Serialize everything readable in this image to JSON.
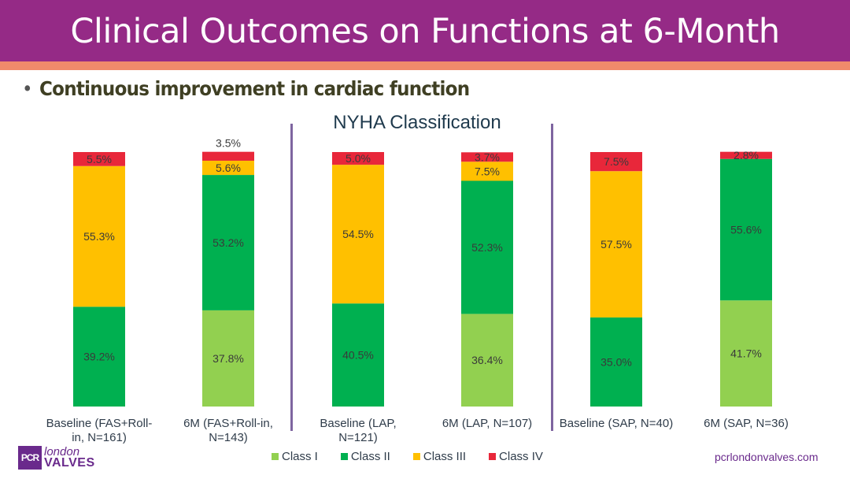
{
  "header": {
    "title": "Clinical Outcomes on Functions at 6-Month",
    "bullet": "Continuous improvement in cardiac function"
  },
  "colors": {
    "header_bg": "#952a86",
    "header_stripe": "#f08a6b",
    "class_i": "#92d050",
    "class_ii": "#00b050",
    "class_iii": "#ffc000",
    "class_iv": "#e8273a",
    "divider": "#7e65a0"
  },
  "chart_data": {
    "type": "bar",
    "stacked": true,
    "title": "NYHA Classification",
    "xlabel": "",
    "ylabel": "",
    "ylim": [
      0,
      100
    ],
    "categories": [
      "Baseline (FAS+Roll-in, N=161)",
      "6M (FAS+Roll-in, N=143)",
      "Baseline (LAP, N=121)",
      "6M (LAP, N=107)",
      "Baseline (SAP, N=40)",
      "6M (SAP, N=36)"
    ],
    "category_lines": [
      [
        "Baseline (FAS+Roll-",
        "in, N=161)"
      ],
      [
        "6M (FAS+Roll-in,",
        "N=143)"
      ],
      [
        "Baseline (LAP,",
        "N=121)"
      ],
      [
        "6M (LAP, N=107)"
      ],
      [
        "Baseline (SAP, N=40)"
      ],
      [
        "6M (SAP, N=36)"
      ]
    ],
    "series": [
      {
        "name": "Class I",
        "color": "#92d050",
        "values": [
          0,
          37.8,
          0,
          36.4,
          0,
          41.7
        ]
      },
      {
        "name": "Class II",
        "color": "#00b050",
        "values": [
          39.2,
          53.2,
          40.5,
          52.3,
          35.0,
          55.6
        ]
      },
      {
        "name": "Class III",
        "color": "#ffc000",
        "values": [
          55.3,
          5.6,
          54.5,
          7.5,
          57.5,
          0
        ]
      },
      {
        "name": "Class IV",
        "color": "#e8273a",
        "values": [
          5.5,
          3.5,
          5.0,
          3.7,
          7.5,
          2.8
        ]
      }
    ],
    "data_labels": [
      [
        "",
        "37.8%",
        "",
        "36.4%",
        "",
        "41.7%"
      ],
      [
        "39.2%",
        "53.2%",
        "40.5%",
        "52.3%",
        "35.0%",
        "55.6%"
      ],
      [
        "55.3%",
        "5.6%",
        "54.5%",
        "7.5%",
        "57.5%",
        ""
      ],
      [
        "5.5%",
        "3.5%",
        "5.0%",
        "3.7%",
        "7.5%",
        "2.8%"
      ]
    ],
    "legend": [
      "Class I",
      "Class II",
      "Class III",
      "Class IV"
    ],
    "legend_position": "bottom",
    "grid": false,
    "group_dividers_after": [
      1,
      3
    ]
  },
  "footer": {
    "logo_box": "PCR",
    "logo_line1": "london",
    "logo_line2": "VALVES",
    "url": "pcrlondonvalves.com"
  }
}
